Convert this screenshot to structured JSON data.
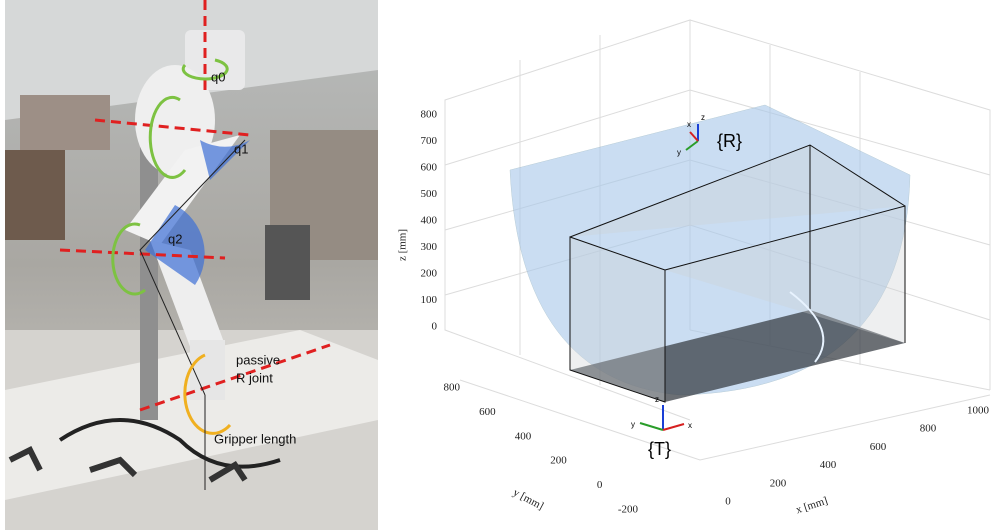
{
  "photo": {
    "joints": [
      "q0",
      "q1",
      "q2"
    ],
    "passive_joint": [
      "passive",
      "R joint"
    ],
    "gripper": "Gripper length"
  },
  "plot": {
    "z_label": "z [mm]",
    "y_label": "y [mm]",
    "x_label": "x [mm]",
    "z_ticks": [
      800,
      700,
      600,
      500,
      400,
      300,
      200,
      100,
      0
    ],
    "y_ticks": [
      800,
      600,
      400,
      200,
      0,
      -200
    ],
    "x_ticks": [
      0,
      200,
      400,
      600,
      800,
      1000
    ],
    "frames": [
      "{R}",
      "{T}"
    ],
    "axis_letters": [
      "x",
      "y",
      "z"
    ]
  }
}
